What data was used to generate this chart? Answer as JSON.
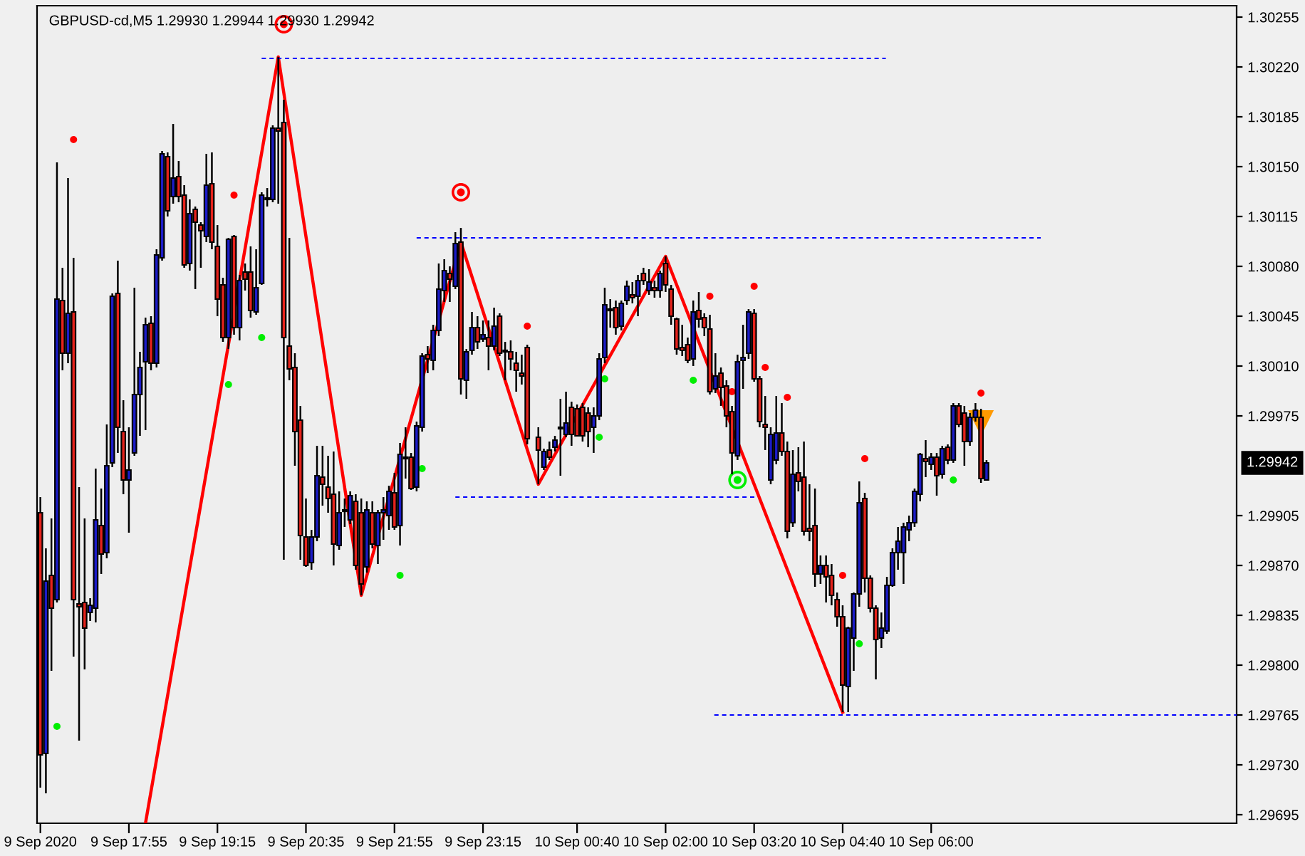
{
  "chart_data": {
    "type": "candlestick",
    "title": "GBPUSD-cd,M5 1.29930 1.29944 1.29930 1.29942",
    "x": [
      "2020-09-09T16:35",
      "2020-09-09T16:40",
      "2020-09-09T16:45",
      "2020-09-09T16:50",
      "2020-09-09T16:55",
      "2020-09-09T17:00",
      "2020-09-09T17:05",
      "2020-09-09T17:10",
      "2020-09-09T17:15",
      "2020-09-09T17:20",
      "2020-09-09T17:25",
      "2020-09-09T17:30",
      "2020-09-09T17:35",
      "2020-09-09T17:40",
      "2020-09-09T17:45",
      "2020-09-09T17:50",
      "2020-09-09T17:55",
      "2020-09-09T18:00",
      "2020-09-09T18:05",
      "2020-09-09T18:10",
      "2020-09-09T18:15",
      "2020-09-09T18:20",
      "2020-09-09T18:25",
      "2020-09-09T18:30",
      "2020-09-09T18:35",
      "2020-09-09T18:40",
      "2020-09-09T18:45",
      "2020-09-09T18:50",
      "2020-09-09T18:55",
      "2020-09-09T19:00",
      "2020-09-09T19:05",
      "2020-09-09T19:10",
      "2020-09-09T19:15",
      "2020-09-09T19:20",
      "2020-09-09T19:25",
      "2020-09-09T19:30",
      "2020-09-09T19:35",
      "2020-09-09T19:40",
      "2020-09-09T19:45",
      "2020-09-09T19:50",
      "2020-09-09T19:55",
      "2020-09-09T20:00",
      "2020-09-09T20:05",
      "2020-09-09T20:10",
      "2020-09-09T20:15",
      "2020-09-09T20:20",
      "2020-09-09T20:25",
      "2020-09-09T20:30",
      "2020-09-09T20:35",
      "2020-09-09T20:40",
      "2020-09-09T20:45",
      "2020-09-09T20:50",
      "2020-09-09T20:55",
      "2020-09-09T21:00",
      "2020-09-09T21:05",
      "2020-09-09T21:10",
      "2020-09-09T21:15",
      "2020-09-09T21:20",
      "2020-09-09T21:25",
      "2020-09-09T21:30",
      "2020-09-09T21:35",
      "2020-09-09T21:40",
      "2020-09-09T21:45",
      "2020-09-09T21:50",
      "2020-09-09T21:55",
      "2020-09-09T22:00",
      "2020-09-09T22:05",
      "2020-09-09T22:10",
      "2020-09-09T22:15",
      "2020-09-09T22:20",
      "2020-09-09T22:25",
      "2020-09-09T22:30",
      "2020-09-09T22:35",
      "2020-09-09T22:40",
      "2020-09-09T22:45",
      "2020-09-09T22:50",
      "2020-09-09T22:55",
      "2020-09-09T23:00",
      "2020-09-09T23:05",
      "2020-09-09T23:10",
      "2020-09-09T23:15",
      "2020-09-09T23:20",
      "2020-09-09T23:25",
      "2020-09-09T23:30",
      "2020-09-09T23:35",
      "2020-09-09T23:40",
      "2020-09-09T23:45",
      "2020-09-09T23:50",
      "2020-09-09T23:55",
      "2020-09-10T00:05",
      "2020-09-10T00:10",
      "2020-09-10T00:15",
      "2020-09-10T00:20",
      "2020-09-10T00:25",
      "2020-09-10T00:30",
      "2020-09-10T00:35",
      "2020-09-10T00:40",
      "2020-09-10T00:45",
      "2020-09-10T00:50",
      "2020-09-10T00:55",
      "2020-09-10T01:00",
      "2020-09-10T01:05",
      "2020-09-10T01:10",
      "2020-09-10T01:15",
      "2020-09-10T01:20",
      "2020-09-10T01:25",
      "2020-09-10T01:30",
      "2020-09-10T01:35",
      "2020-09-10T01:40",
      "2020-09-10T01:45",
      "2020-09-10T01:50",
      "2020-09-10T01:55",
      "2020-09-10T02:00",
      "2020-09-10T02:05",
      "2020-09-10T02:10",
      "2020-09-10T02:15",
      "2020-09-10T02:20",
      "2020-09-10T02:25",
      "2020-09-10T02:30",
      "2020-09-10T02:35",
      "2020-09-10T02:40",
      "2020-09-10T02:45",
      "2020-09-10T02:50",
      "2020-09-10T02:55",
      "2020-09-10T03:00",
      "2020-09-10T03:05",
      "2020-09-10T03:10",
      "2020-09-10T03:15",
      "2020-09-10T03:20",
      "2020-09-10T03:25",
      "2020-09-10T03:30",
      "2020-09-10T03:35",
      "2020-09-10T03:40",
      "2020-09-10T03:45",
      "2020-09-10T03:50",
      "2020-09-10T03:55",
      "2020-09-10T04:00",
      "2020-09-10T04:05",
      "2020-09-10T04:10",
      "2020-09-10T04:15",
      "2020-09-10T04:20",
      "2020-09-10T04:25",
      "2020-09-10T04:30",
      "2020-09-10T04:35",
      "2020-09-10T04:40",
      "2020-09-10T04:45",
      "2020-09-10T04:50",
      "2020-09-10T04:55",
      "2020-09-10T05:00",
      "2020-09-10T05:05",
      "2020-09-10T05:10",
      "2020-09-10T05:15",
      "2020-09-10T05:20",
      "2020-09-10T05:25",
      "2020-09-10T05:30",
      "2020-09-10T05:35",
      "2020-09-10T05:40",
      "2020-09-10T05:45",
      "2020-09-10T05:50",
      "2020-09-10T05:55",
      "2020-09-10T06:00",
      "2020-09-10T06:05",
      "2020-09-10T06:10",
      "2020-09-10T06:15",
      "2020-09-10T06:20",
      "2020-09-10T06:25",
      "2020-09-10T06:30",
      "2020-09-10T06:35",
      "2020-09-10T06:40",
      "2020-09-10T06:45",
      "2020-09-10T06:50"
    ],
    "ohlc": [
      [
        1.29907,
        1.29918,
        1.29714,
        1.29737
      ],
      [
        1.29738,
        1.29882,
        1.2971,
        1.29859
      ],
      [
        1.29863,
        1.29903,
        1.29796,
        1.2984
      ],
      [
        1.29846,
        1.30153,
        1.29844,
        1.30057
      ],
      [
        1.30056,
        1.30079,
        1.30007,
        1.30019
      ],
      [
        1.30019,
        1.30142,
        1.30012,
        1.30047
      ],
      [
        1.30048,
        1.30086,
        1.29806,
        1.29846
      ],
      [
        1.29843,
        1.29925,
        1.29747,
        1.29841
      ],
      [
        1.29844,
        1.29903,
        1.29797,
        1.29826
      ],
      [
        1.29837,
        1.29847,
        1.29831,
        1.29842
      ],
      [
        1.2984,
        1.29938,
        1.2983,
        1.29902
      ],
      [
        1.29898,
        1.29924,
        1.29864,
        1.29878
      ],
      [
        1.29879,
        1.29969,
        1.29875,
        1.2994
      ],
      [
        1.29942,
        1.30061,
        1.29939,
        1.30059
      ],
      [
        1.30061,
        1.30084,
        1.29949,
        1.29967
      ],
      [
        1.29964,
        1.29986,
        1.2992,
        1.2993
      ],
      [
        1.2993,
        1.29967,
        1.29893,
        1.29937
      ],
      [
        1.29949,
        1.30065,
        1.29947,
        1.2999
      ],
      [
        1.2999,
        1.3002,
        1.29961,
        1.30009
      ],
      [
        1.30013,
        1.30044,
        1.29965,
        1.30039
      ],
      [
        1.3004,
        1.30045,
        1.30007,
        1.30012
      ],
      [
        1.30012,
        1.30092,
        1.30009,
        1.30088
      ],
      [
        1.30086,
        1.30161,
        1.30084,
        1.30159
      ],
      [
        1.30157,
        1.3016,
        1.30115,
        1.30119
      ],
      [
        1.30129,
        1.3018,
        1.30124,
        1.30142
      ],
      [
        1.30143,
        1.30154,
        1.30125,
        1.30129
      ],
      [
        1.3013,
        1.30137,
        1.30079,
        1.30081
      ],
      [
        1.30082,
        1.30127,
        1.30077,
        1.30117
      ],
      [
        1.3012,
        1.30122,
        1.30064,
        1.30111
      ],
      [
        1.30109,
        1.30111,
        1.30079,
        1.30105
      ],
      [
        1.30101,
        1.30159,
        1.30097,
        1.30137
      ],
      [
        1.30138,
        1.3016,
        1.30092,
        1.30097
      ],
      [
        1.30094,
        1.30109,
        1.30045,
        1.30057
      ],
      [
        1.30067,
        1.30072,
        1.30027,
        1.3003
      ],
      [
        1.3003,
        1.301,
        1.30022,
        1.30099
      ],
      [
        1.30101,
        1.30102,
        1.30032,
        1.30037
      ],
      [
        1.30037,
        1.30074,
        1.30028,
        1.3007
      ],
      [
        1.30076,
        1.30082,
        1.30063,
        1.30071
      ],
      [
        1.30076,
        1.30094,
        1.30044,
        1.30049
      ],
      [
        1.30048,
        1.30092,
        1.30046,
        1.30065
      ],
      [
        1.30068,
        1.30132,
        1.30067,
        1.3013
      ],
      [
        1.30127,
        1.30135,
        1.30122,
        1.30128
      ],
      [
        1.30127,
        1.30179,
        1.30125,
        1.30177
      ],
      [
        1.30177,
        1.30227,
        1.30124,
        1.30175
      ],
      [
        1.30181,
        1.30197,
        1.29874,
        1.3003
      ],
      [
        1.30024,
        1.301,
        1.3,
        1.30008
      ],
      [
        1.30009,
        1.30019,
        1.2994,
        1.29964
      ],
      [
        1.29972,
        1.29982,
        1.29874,
        1.29891
      ],
      [
        1.2989,
        1.29917,
        1.29869,
        1.2987
      ],
      [
        1.29872,
        1.29895,
        1.29867,
        1.2989
      ],
      [
        1.2989,
        1.29954,
        1.29887,
        1.29933
      ],
      [
        1.29932,
        1.29954,
        1.29912,
        1.29927
      ],
      [
        1.29925,
        1.29947,
        1.29907,
        1.29917
      ],
      [
        1.2992,
        1.2995,
        1.2987,
        1.29885
      ],
      [
        1.29884,
        1.29922,
        1.29881,
        1.29907
      ],
      [
        1.29909,
        1.29917,
        1.29897,
        1.29908
      ],
      [
        1.29902,
        1.29922,
        1.29899,
        1.29919
      ],
      [
        1.29915,
        1.2992,
        1.29867,
        1.2987
      ],
      [
        1.29907,
        1.29917,
        1.29849,
        1.29857
      ],
      [
        1.29869,
        1.29915,
        1.29865,
        1.29909
      ],
      [
        1.29907,
        1.29915,
        1.29882,
        1.29885
      ],
      [
        1.29884,
        1.29909,
        1.29871,
        1.29907
      ],
      [
        1.29907,
        1.29918,
        1.29888,
        1.29909
      ],
      [
        1.29905,
        1.29926,
        1.29895,
        1.29922
      ],
      [
        1.29921,
        1.29935,
        1.29895,
        1.29897
      ],
      [
        1.29898,
        1.29956,
        1.29884,
        1.29948
      ],
      [
        1.29946,
        1.29967,
        1.29931,
        1.29945
      ],
      [
        1.29946,
        1.29949,
        1.29923,
        1.29924
      ],
      [
        1.29925,
        1.29971,
        1.29922,
        1.29968
      ],
      [
        1.29967,
        1.30019,
        1.29964,
        1.30017
      ],
      [
        1.30018,
        1.30024,
        1.30005,
        1.30015
      ],
      [
        1.30014,
        1.30039,
        1.30007,
        1.30035
      ],
      [
        1.30035,
        1.30082,
        1.30031,
        1.30064
      ],
      [
        1.30063,
        1.30085,
        1.30055,
        1.30077
      ],
      [
        1.30075,
        1.3008,
        1.30055,
        1.30071
      ],
      [
        1.30066,
        1.30104,
        1.30064,
        1.30096
      ],
      [
        1.30097,
        1.30107,
        1.2999,
        1.30001
      ],
      [
        1.3,
        1.30022,
        1.29987,
        1.3002
      ],
      [
        1.30021,
        1.30048,
        1.30018,
        1.30037
      ],
      [
        1.30037,
        1.30045,
        1.30022,
        1.30027
      ],
      [
        1.30029,
        1.30042,
        1.30027,
        1.30032
      ],
      [
        1.3003,
        1.30042,
        1.30007,
        1.30024
      ],
      [
        1.30024,
        1.30051,
        1.30021,
        1.30038
      ],
      [
        1.30045,
        1.30047,
        1.30017,
        1.30019
      ],
      [
        1.30021,
        1.30027,
        1.3,
        1.3002
      ],
      [
        1.3002,
        1.30028,
        1.30007,
        1.30015
      ],
      [
        1.30012,
        1.3002,
        1.29992,
        1.30007
      ],
      [
        1.30005,
        1.30018,
        1.29997,
        1.30003
      ],
      [
        1.30023,
        1.30025,
        1.29955,
        1.29959
      ],
      [
        1.2996,
        1.29967,
        1.29927,
        1.29951
      ],
      [
        1.29939,
        1.29952,
        1.29937,
        1.2995
      ],
      [
        1.29951,
        1.29957,
        1.29944,
        1.29946
      ],
      [
        1.29953,
        1.29961,
        1.2995,
        1.29958
      ],
      [
        1.29967,
        1.29987,
        1.29933,
        1.29966
      ],
      [
        1.29962,
        1.29992,
        1.2996,
        1.2997
      ],
      [
        1.29981,
        1.29985,
        1.29954,
        1.29962
      ],
      [
        1.2998,
        1.29983,
        1.29961,
        1.29961
      ],
      [
        1.29981,
        1.29984,
        1.29957,
        1.29961
      ],
      [
        1.29977,
        1.29981,
        1.29953,
        1.29964
      ],
      [
        1.29967,
        1.29981,
        1.29949,
        1.29975
      ],
      [
        1.29975,
        1.30019,
        1.29972,
        1.30015
      ],
      [
        1.30016,
        1.30065,
        1.30012,
        1.30053
      ],
      [
        1.30049,
        1.30057,
        1.30037,
        1.3005
      ],
      [
        1.30051,
        1.30056,
        1.30032,
        1.30037
      ],
      [
        1.30038,
        1.30056,
        1.30035,
        1.30054
      ],
      [
        1.30056,
        1.3007,
        1.30053,
        1.30066
      ],
      [
        1.3006,
        1.30069,
        1.30054,
        1.30058
      ],
      [
        1.30059,
        1.30074,
        1.30045,
        1.3007
      ],
      [
        1.30075,
        1.30079,
        1.30067,
        1.3007
      ],
      [
        1.30063,
        1.30078,
        1.3006,
        1.30069
      ],
      [
        1.30065,
        1.3007,
        1.30058,
        1.30063
      ],
      [
        1.30063,
        1.30077,
        1.30058,
        1.30075
      ],
      [
        1.30082,
        1.30087,
        1.30062,
        1.30067
      ],
      [
        1.30064,
        1.30067,
        1.30039,
        1.30045
      ],
      [
        1.30043,
        1.30044,
        1.30018,
        1.30022
      ],
      [
        1.30023,
        1.30039,
        1.30017,
        1.30021
      ],
      [
        1.30025,
        1.3003,
        1.30012,
        1.30014
      ],
      [
        1.30015,
        1.30056,
        1.3001,
        1.30048
      ],
      [
        1.30049,
        1.30062,
        1.30037,
        1.30043
      ],
      [
        1.30044,
        1.30047,
        1.30031,
        1.30037
      ],
      [
        1.30036,
        1.30046,
        1.2999,
        1.29992
      ],
      [
        1.29994,
        1.30019,
        1.29991,
        1.30003
      ],
      [
        1.30005,
        1.30009,
        1.29982,
        1.29995
      ],
      [
        1.29996,
        1.3,
        1.29967,
        1.29975
      ],
      [
        1.29978,
        1.29982,
        1.29934,
        1.29949
      ],
      [
        1.29947,
        1.30018,
        1.29944,
        1.30013
      ],
      [
        1.30014,
        1.30039,
        1.29994,
        1.30016
      ],
      [
        1.30019,
        1.3005,
        1.30015,
        1.30048
      ],
      [
        1.30047,
        1.3005,
        1.29999,
        1.30001
      ],
      [
        1.30001,
        1.30003,
        1.29967,
        1.29971
      ],
      [
        1.29969,
        1.29989,
        1.29951,
        1.29967
      ],
      [
        1.2993,
        1.29967,
        1.29927,
        1.29962
      ],
      [
        1.29944,
        1.29989,
        1.29941,
        1.29963
      ],
      [
        1.29963,
        1.29984,
        1.29947,
        1.2995
      ],
      [
        1.2995,
        1.29957,
        1.29889,
        1.29894
      ],
      [
        1.299,
        1.29951,
        1.29897,
        1.29934
      ],
      [
        1.29935,
        1.29953,
        1.29922,
        1.29929
      ],
      [
        1.29932,
        1.29957,
        1.29891,
        1.29894
      ],
      [
        1.29896,
        1.29927,
        1.29887,
        1.29894
      ],
      [
        1.29898,
        1.29924,
        1.29855,
        1.29864
      ],
      [
        1.29864,
        1.29877,
        1.29857,
        1.2987
      ],
      [
        1.2987,
        1.29877,
        1.29844,
        1.29862
      ],
      [
        1.29863,
        1.29871,
        1.29842,
        1.29849
      ],
      [
        1.29846,
        1.29851,
        1.29827,
        1.29834
      ],
      [
        1.29834,
        1.29842,
        1.29767,
        1.29786
      ],
      [
        1.29785,
        1.29827,
        1.29767,
        1.29826
      ],
      [
        1.29819,
        1.29851,
        1.29796,
        1.2985
      ],
      [
        1.2985,
        1.29929,
        1.29841,
        1.29914
      ],
      [
        1.29917,
        1.29921,
        1.29851,
        1.29861
      ],
      [
        1.29861,
        1.29863,
        1.29837,
        1.2984
      ],
      [
        1.2984,
        1.29842,
        1.2979,
        1.29818
      ],
      [
        1.29819,
        1.29837,
        1.29812,
        1.29826
      ],
      [
        1.29824,
        1.29862,
        1.29822,
        1.29856
      ],
      [
        1.29856,
        1.29882,
        1.29855,
        1.29879
      ],
      [
        1.29879,
        1.29897,
        1.29867,
        1.29887
      ],
      [
        1.29879,
        1.299,
        1.29857,
        1.29897
      ],
      [
        1.29895,
        1.29905,
        1.29887,
        1.299
      ],
      [
        1.299,
        1.29924,
        1.29897,
        1.29922
      ],
      [
        1.2992,
        1.29949,
        1.29915,
        1.29948
      ],
      [
        1.29945,
        1.29958,
        1.29932,
        1.29943
      ],
      [
        1.29941,
        1.29949,
        1.29937,
        1.29946
      ],
      [
        1.29946,
        1.29949,
        1.29919,
        1.29933
      ],
      [
        1.29934,
        1.29954,
        1.29931,
        1.29952
      ],
      [
        1.29953,
        1.29955,
        1.29941,
        1.29944
      ],
      [
        1.29944,
        1.29984,
        1.29942,
        1.29982
      ],
      [
        1.29982,
        1.29984,
        1.29967,
        1.29969
      ],
      [
        1.29977,
        1.29982,
        1.2994,
        1.29957
      ],
      [
        1.29957,
        1.29977,
        1.29954,
        1.29974
      ],
      [
        1.29974,
        1.29984,
        1.29971,
        1.29979
      ],
      [
        1.29974,
        1.2998,
        1.29928,
        1.29931
      ],
      [
        1.2993,
        1.29944,
        1.2993,
        1.29942
      ]
    ],
    "colors": [
      "#e6231c",
      "#1c1cc8",
      "#e6231c",
      "#1c1cc8",
      "#e6231c",
      "#1c1cc8",
      "#e6231c",
      "#e6231c",
      "#e6231c",
      "#1c1cc8",
      "#1c1cc8",
      "#e6231c",
      "#1c1cc8",
      "#1c1cc8",
      "#e6231c",
      "#e6231c",
      "#1c1cc8",
      "#1c1cc8",
      "#1c1cc8",
      "#1c1cc8",
      "#e6231c",
      "#1c1cc8",
      "#1c1cc8",
      "#e6231c",
      "#1c1cc8",
      "#e6231c",
      "#e6231c",
      "#1c1cc8",
      "#e6231c",
      "#e6231c",
      "#1c1cc8",
      "#e6231c",
      "#e6231c",
      "#e6231c",
      "#1c1cc8",
      "#e6231c",
      "#1c1cc8",
      "#e6231c",
      "#e6231c",
      "#1c1cc8",
      "#1c1cc8",
      "#1c1cc8",
      "#1c1cc8",
      "#e6231c",
      "#e6231c",
      "#e6231c",
      "#e6231c",
      "#e6231c",
      "#e6231c",
      "#1c1cc8",
      "#1c1cc8",
      "#e6231c",
      "#e6231c",
      "#e6231c",
      "#1c1cc8",
      "#e6231c",
      "#1c1cc8",
      "#e6231c",
      "#e6231c",
      "#1c1cc8",
      "#e6231c",
      "#1c1cc8",
      "#1c1cc8",
      "#1c1cc8",
      "#e6231c",
      "#1c1cc8",
      "#e6231c",
      "#e6231c",
      "#1c1cc8",
      "#1c1cc8",
      "#e6231c",
      "#1c1cc8",
      "#1c1cc8",
      "#1c1cc8",
      "#e6231c",
      "#1c1cc8",
      "#e6231c",
      "#1c1cc8",
      "#1c1cc8",
      "#e6231c",
      "#1c1cc8",
      "#e6231c",
      "#1c1cc8",
      "#e6231c",
      "#e6231c",
      "#e6231c",
      "#e6231c",
      "#e6231c",
      "#e6231c",
      "#e6231c",
      "#1c1cc8",
      "#e6231c",
      "#1c1cc8",
      "#e6231c",
      "#1c1cc8",
      "#e6231c",
      "#e6231c",
      "#e6231c",
      "#e6231c",
      "#1c1cc8",
      "#1c1cc8",
      "#1c1cc8",
      "#1c1cc8",
      "#e6231c",
      "#1c1cc8",
      "#1c1cc8",
      "#e6231c",
      "#1c1cc8",
      "#e6231c",
      "#1c1cc8",
      "#e6231c",
      "#1c1cc8",
      "#e6231c",
      "#e6231c",
      "#e6231c",
      "#e6231c",
      "#e6231c",
      "#1c1cc8",
      "#e6231c",
      "#e6231c",
      "#e6231c",
      "#1c1cc8",
      "#e6231c",
      "#e6231c",
      "#e6231c",
      "#1c1cc8",
      "#1c1cc8",
      "#1c1cc8",
      "#e6231c",
      "#e6231c",
      "#e6231c",
      "#1c1cc8",
      "#1c1cc8",
      "#e6231c",
      "#e6231c",
      "#1c1cc8",
      "#e6231c",
      "#e6231c",
      "#e6231c",
      "#e6231c",
      "#1c1cc8",
      "#e6231c",
      "#e6231c",
      "#e6231c",
      "#e6231c",
      "#1c1cc8",
      "#1c1cc8",
      "#1c1cc8",
      "#e6231c",
      "#e6231c",
      "#e6231c",
      "#1c1cc8",
      "#1c1cc8",
      "#1c1cc8",
      "#1c1cc8",
      "#1c1cc8",
      "#1c1cc8",
      "#1c1cc8",
      "#1c1cc8",
      "#e6231c",
      "#1c1cc8",
      "#e6231c",
      "#1c1cc8",
      "#e6231c",
      "#1c1cc8",
      "#e6231c",
      "#e6231c",
      "#1c1cc8",
      "#1c1cc8",
      "#e6231c",
      "#1c1cc8"
    ],
    "series": [
      {
        "type": "line",
        "color": "#ff0000",
        "x": [
          "2020-09-09T18:10",
          "2020-09-09T20:10",
          "2020-09-09T21:25",
          "2020-09-09T22:55",
          "2020-09-10T00:05",
          "2020-09-10T02:00",
          "2020-09-10T04:40"
        ],
        "values": [
          1.29689,
          1.30227,
          1.29849,
          1.30097,
          1.29927,
          1.30087,
          1.29767
        ]
      },
      {
        "type": "line",
        "color": "#0000ff",
        "line_style": "dashed",
        "x": [
          "2020-09-09T19:55",
          "2020-09-10T05:19"
        ],
        "values": [
          1.30226,
          1.30226
        ]
      },
      {
        "type": "line",
        "color": "#0000ff",
        "line_style": "dashed",
        "x": [
          "2020-09-09T22:15",
          "2020-09-10T07:39"
        ],
        "values": [
          1.301,
          1.301
        ]
      },
      {
        "type": "line",
        "color": "#0000ff",
        "line_style": "dashed",
        "x": [
          "2020-09-09T22:50",
          "2020-09-10T03:21"
        ],
        "values": [
          1.29918,
          1.29918
        ]
      },
      {
        "type": "line",
        "color": "#0000ff",
        "line_style": "dashed",
        "x": [
          "2020-09-10T02:44",
          "2020-09-10T10:36"
        ],
        "values": [
          1.29765,
          1.29765
        ]
      },
      {
        "type": "scatter",
        "marker": "circle",
        "color": "#ff0000",
        "x": [
          "2020-09-09T17:05",
          "2020-09-09T19:30",
          "2020-09-09T23:55",
          "2020-09-10T02:40",
          "2020-09-10T03:00",
          "2020-09-10T03:20",
          "2020-09-10T03:30",
          "2020-09-10T03:50",
          "2020-09-10T04:40",
          "2020-09-10T05:00",
          "2020-09-10T06:45"
        ],
        "values": [
          1.30169,
          1.3013,
          1.30038,
          1.30059,
          1.29992,
          1.30066,
          1.30009,
          1.29988,
          1.29863,
          1.29945,
          1.29991
        ]
      },
      {
        "type": "scatter",
        "color": "#ff0000",
        "x": [
          "2020-09-09T20:15",
          "2020-09-09T22:55"
        ],
        "values": [
          1.3025,
          1.30132
        ]
      },
      {
        "type": "scatter",
        "marker": "circle",
        "color": "#00ee00",
        "x": [
          "2020-09-09T16:50",
          "2020-09-09T19:25",
          "2020-09-09T19:55",
          "2020-09-09T22:00",
          "2020-09-09T22:20",
          "2020-09-10T01:00",
          "2020-09-10T01:05",
          "2020-09-10T02:25",
          "2020-09-10T04:55",
          "2020-09-10T06:20"
        ],
        "values": [
          1.29757,
          1.29997,
          1.3003,
          1.29863,
          1.29938,
          1.2996,
          1.30001,
          1.3,
          1.29815,
          1.2993
        ]
      },
      {
        "type": "scatter",
        "color": "#00ee00",
        "x": [
          "2020-09-10T03:05"
        ],
        "values": [
          1.2993
        ]
      },
      {
        "type": "scatter",
        "marker": "triangle",
        "color": "#ff9900",
        "x": [
          "2020-09-10T06:45"
        ],
        "values": [
          1.2997
        ]
      }
    ],
    "annotations": [
      "1.29942"
    ],
    "xlim": [
      "2020-09-09T16:32",
      "2020-09-10T10:36"
    ],
    "xticks": [
      {
        "value": "2020-09-09T16:35",
        "label": "9 Sep 2020"
      },
      {
        "value": "2020-09-09T17:55",
        "label": "9 Sep 17:55"
      },
      {
        "value": "2020-09-09T19:15",
        "label": "9 Sep 19:15"
      },
      {
        "value": "2020-09-09T20:35",
        "label": "9 Sep 20:35"
      },
      {
        "value": "2020-09-09T21:55",
        "label": "9 Sep 21:55"
      },
      {
        "value": "2020-09-09T23:15",
        "label": "9 Sep 23:15"
      },
      {
        "value": "2020-09-10T00:40",
        "label": "10 Sep 00:40"
      },
      {
        "value": "2020-09-10T02:00",
        "label": "10 Sep 02:00"
      },
      {
        "value": "2020-09-10T03:20",
        "label": "10 Sep 03:20"
      },
      {
        "value": "2020-09-10T04:40",
        "label": "10 Sep 04:40"
      },
      {
        "value": "2020-09-10T06:00",
        "label": "10 Sep 06:00"
      }
    ],
    "ylim": [
      1.29689,
      1.30263
    ],
    "yticks": [
      {
        "value": 1.30255,
        "label": "1.30255"
      },
      {
        "value": 1.3022,
        "label": "1.30220"
      },
      {
        "value": 1.30185,
        "label": "1.30185"
      },
      {
        "value": 1.3015,
        "label": "1.30150"
      },
      {
        "value": 1.30115,
        "label": "1.30115"
      },
      {
        "value": 1.3008,
        "label": "1.30080"
      },
      {
        "value": 1.30045,
        "label": "1.30045"
      },
      {
        "value": 1.3001,
        "label": "1.30010"
      },
      {
        "value": 1.29975,
        "label": "1.29975"
      },
      {
        "value": 1.29905,
        "label": "1.29905"
      },
      {
        "value": 1.2987,
        "label": "1.29870"
      },
      {
        "value": 1.29835,
        "label": "1.29835"
      },
      {
        "value": 1.298,
        "label": "1.29800"
      },
      {
        "value": 1.29765,
        "label": "1.29765"
      },
      {
        "value": 1.2973,
        "label": "1.29730"
      },
      {
        "value": 1.29695,
        "label": "1.29695"
      }
    ]
  }
}
